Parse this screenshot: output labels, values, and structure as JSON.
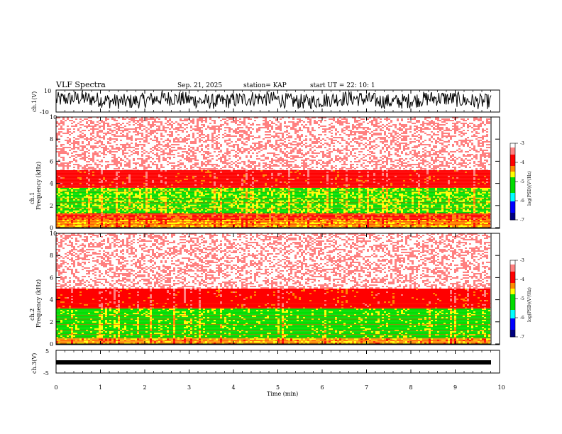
{
  "header": {
    "title": "VLF Spectra",
    "date": "Sep. 21, 2025",
    "station": "station= KAP",
    "start": "start  UT =   22: 10: 1"
  },
  "chart_data": [
    {
      "type": "line",
      "name": "ch1-waveform",
      "ylabel": "ch.1(V)",
      "ylim": [
        -10,
        10
      ],
      "yticks": [
        "10",
        "-10"
      ],
      "xlim": [
        0,
        10
      ],
      "description_of_values": "noisy waveform ranging roughly between -8 and +9 V"
    },
    {
      "type": "heatmap",
      "name": "ch1-spectrogram",
      "ylabel": "Frequency (kHz)",
      "channel_label": "ch.1",
      "ylim": [
        0,
        10
      ],
      "yticks": [
        "0",
        "2",
        "4",
        "6",
        "8",
        "10"
      ],
      "xlim": [
        0,
        10
      ],
      "colorbar": {
        "label": "log(PSD)(V²/Hz)",
        "range": [
          -7,
          -3
        ],
        "ticks": [
          "-3",
          "-4",
          "-5",
          "-6",
          "-7"
        ]
      },
      "bands": [
        {
          "from_khz": 0,
          "to_khz": 0.7,
          "level": -4.4
        },
        {
          "from_khz": 0.7,
          "to_khz": 1.3,
          "level": -4.1
        },
        {
          "from_khz": 1.3,
          "to_khz": 3.6,
          "level": -4.9
        },
        {
          "from_khz": 3.6,
          "to_khz": 5.2,
          "level": -3.9
        },
        {
          "from_khz": 5.2,
          "to_khz": 10,
          "level": -3.3
        }
      ]
    },
    {
      "type": "heatmap",
      "name": "ch2-spectrogram",
      "ylabel": "Frequency (kHz)",
      "channel_label": "ch.2",
      "ylim": [
        0,
        10
      ],
      "yticks": [
        "0",
        "2",
        "4",
        "6",
        "8",
        "10"
      ],
      "xlim": [
        0,
        10
      ],
      "colorbar": {
        "label": "log(PSD)(V²/Hz)",
        "range": [
          -7,
          -3
        ],
        "ticks": [
          "-3",
          "-4",
          "-5",
          "-6",
          "-7"
        ]
      },
      "bands": [
        {
          "from_khz": 0,
          "to_khz": 0.5,
          "level": -4.4
        },
        {
          "from_khz": 0.5,
          "to_khz": 3.2,
          "level": -5.0
        },
        {
          "from_khz": 3.2,
          "to_khz": 5.0,
          "level": -3.9
        },
        {
          "from_khz": 5.0,
          "to_khz": 10,
          "level": -3.3
        }
      ]
    },
    {
      "type": "line",
      "name": "ch3-waveform",
      "ylabel": "ch.3(V)",
      "ylim": [
        -5,
        5
      ],
      "yticks": [
        "5",
        "-5"
      ],
      "xlim": [
        0,
        10
      ],
      "description_of_values": "near-constant thick band around -1 V"
    }
  ],
  "xaxis": {
    "label": "Time  (min)",
    "ticks": [
      "0",
      "1",
      "2",
      "3",
      "4",
      "5",
      "6",
      "7",
      "8",
      "9",
      "10"
    ]
  },
  "colors": {
    "white": "#ffffff",
    "pink": "#ff8080",
    "red": "#ff0000",
    "orange": "#ff8800",
    "yellow": "#ffff00",
    "green": "#00dd00",
    "cyan": "#00ffff",
    "blue": "#0000ff",
    "navy": "#000080"
  }
}
